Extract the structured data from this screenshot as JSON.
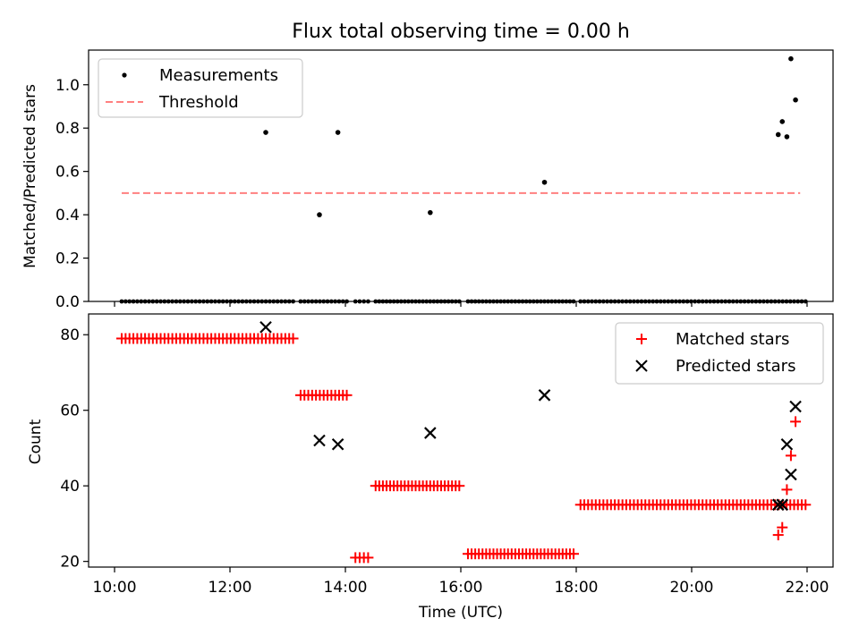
{
  "chart_data": [
    {
      "type": "scatter",
      "title": "Flux total observing time = 0.00 h",
      "xlabel": "",
      "ylabel": "Matched/Predicted stars",
      "ylim": [
        0,
        1.16
      ],
      "xlim": [
        9.55,
        22.45
      ],
      "yticks": [
        "0.0",
        "0.2",
        "0.4",
        "0.6",
        "0.8",
        "1.0"
      ],
      "ytick_values": [
        0,
        0.2,
        0.4,
        0.6,
        0.8,
        1.0
      ],
      "xtick_values": [
        10,
        12,
        14,
        16,
        18,
        20,
        22
      ],
      "legend": {
        "placement": "top-left",
        "entries": [
          "Measurements",
          "Threshold"
        ]
      },
      "threshold": {
        "name": "Threshold",
        "value": 0.5,
        "x_range": [
          9.55,
          21.88
        ],
        "color": "#ff8080"
      },
      "series": [
        {
          "name": "Measurements",
          "color": "#000000",
          "points": [
            [
              12.62,
              0.78
            ],
            [
              13.55,
              0.4
            ],
            [
              13.87,
              0.78
            ],
            [
              15.47,
              0.41
            ],
            [
              17.45,
              0.55
            ],
            [
              21.5,
              0.77
            ],
            [
              21.57,
              0.83
            ],
            [
              21.65,
              0.76
            ],
            [
              21.72,
              1.12
            ],
            [
              21.8,
              0.93
            ]
          ],
          "zero_runs": [
            {
              "from": 9.55,
              "to": 12.52,
              "count": 45
            },
            {
              "from": 12.65,
              "to": 13.45,
              "count": 13
            },
            {
              "from": 13.6,
              "to": 13.82,
              "count": 4
            },
            {
              "from": 13.95,
              "to": 15.4,
              "count": 24
            },
            {
              "from": 15.55,
              "to": 17.38,
              "count": 30
            },
            {
              "from": 17.5,
              "to": 21.4,
              "count": 60
            }
          ]
        }
      ]
    },
    {
      "type": "scatter",
      "title": "",
      "xlabel": "Time (UTC)",
      "ylabel": "Count",
      "ylim": [
        18.5,
        85.5
      ],
      "xlim": [
        9.55,
        22.45
      ],
      "yticks": [
        "20",
        "40",
        "60",
        "80"
      ],
      "ytick_values": [
        20,
        40,
        60,
        80
      ],
      "xticks": [
        "10:00",
        "12:00",
        "14:00",
        "16:00",
        "18:00",
        "20:00",
        "22:00"
      ],
      "xtick_values": [
        10,
        12,
        14,
        16,
        18,
        20,
        22
      ],
      "legend": {
        "placement": "top-right",
        "entries": [
          "Matched stars",
          "Predicted stars"
        ]
      },
      "series": [
        {
          "name": "Matched stars",
          "marker": "plus",
          "color": "#ff0000",
          "runs": [
            {
              "from": 9.55,
              "to": 12.52,
              "count": 45,
              "value": 79
            },
            {
              "from": 12.65,
              "to": 13.45,
              "count": 13,
              "value": 64
            },
            {
              "from": 13.6,
              "to": 13.82,
              "count": 4,
              "value": 21
            },
            {
              "from": 13.95,
              "to": 15.4,
              "count": 24,
              "value": 40
            },
            {
              "from": 15.55,
              "to": 17.38,
              "count": 30,
              "value": 22
            },
            {
              "from": 17.5,
              "to": 21.4,
              "count": 60,
              "value": 35
            }
          ],
          "points": [
            [
              21.5,
              27
            ],
            [
              21.57,
              29
            ],
            [
              21.65,
              39
            ],
            [
              21.72,
              48
            ],
            [
              21.8,
              57
            ]
          ]
        },
        {
          "name": "Predicted stars",
          "marker": "x",
          "color": "#000000",
          "points": [
            [
              12.62,
              82
            ],
            [
              13.55,
              52
            ],
            [
              13.87,
              51
            ],
            [
              15.47,
              54
            ],
            [
              17.45,
              64
            ],
            [
              21.5,
              35
            ],
            [
              21.57,
              35
            ],
            [
              21.65,
              51
            ],
            [
              21.72,
              43
            ],
            [
              21.8,
              61
            ]
          ]
        }
      ]
    }
  ]
}
